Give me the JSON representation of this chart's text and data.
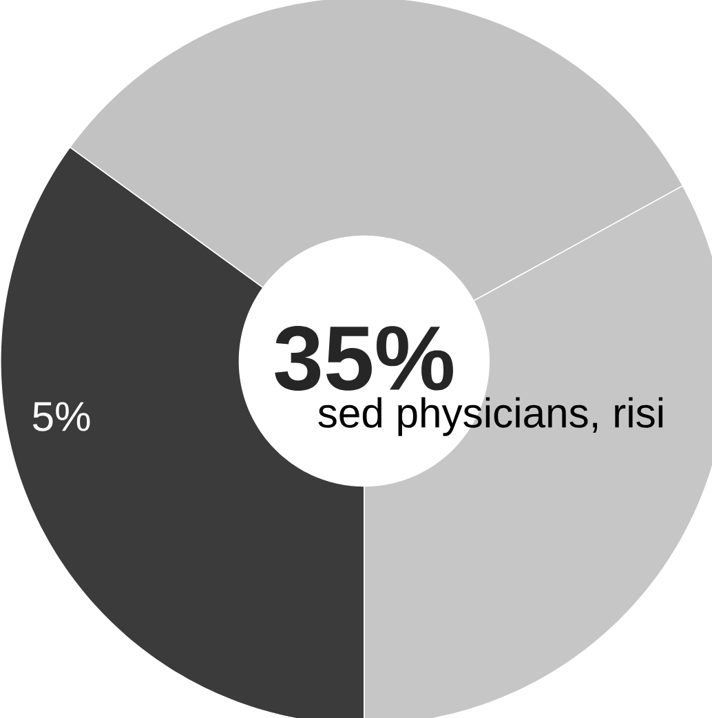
{
  "chart_data": {
    "type": "donut",
    "categories": [
      null,
      null,
      null
    ],
    "values": [
      35,
      32,
      33
    ],
    "colors": [
      "#3b3b3b",
      "#c2c2c2",
      "#c6c6c6"
    ],
    "annotations": [
      "35%",
      "5%",
      "sed physicians, risi"
    ]
  }
}
